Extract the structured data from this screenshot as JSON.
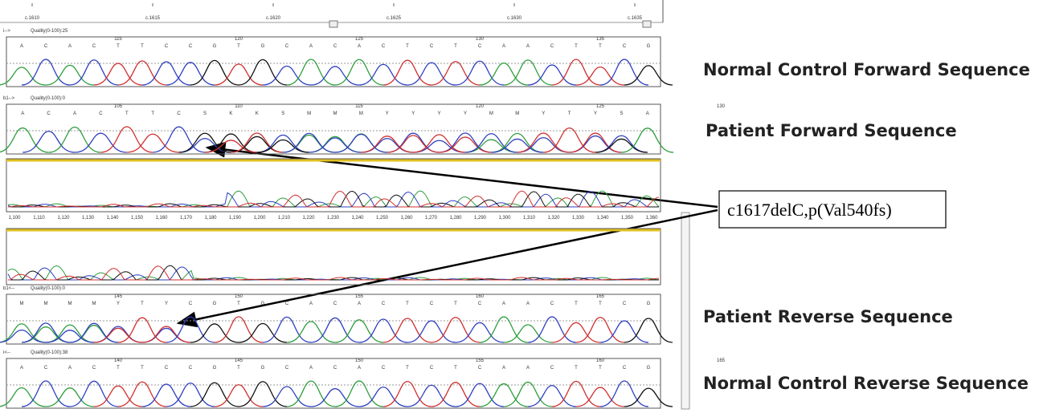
{
  "ruler": {
    "labels": [
      "c.1610",
      "c.1615",
      "c.1620",
      "c.1625",
      "c.1630",
      "c.1635"
    ]
  },
  "tracks": [
    {
      "direction": "i-->",
      "quality": "Quality(0-100):25",
      "positions": [
        "115",
        "120",
        "125",
        "130",
        "135"
      ],
      "bases": [
        "A",
        "C",
        "A",
        "C",
        "T",
        "T",
        "C",
        "C",
        "G",
        "T",
        "G",
        "C",
        "A",
        "C",
        "A",
        "C",
        "T",
        "C",
        "T",
        "C",
        "A",
        "A",
        "C",
        "T",
        "T",
        "C",
        "G"
      ],
      "label": "Normal Control Forward Sequence"
    },
    {
      "direction": "b1-->",
      "quality": "Quality(0-100):0",
      "positions": [
        "105",
        "110",
        "115",
        "120",
        "125",
        "130"
      ],
      "bases": [
        "A",
        "C",
        "A",
        "C",
        "T",
        "T",
        "C",
        "S",
        "K",
        "K",
        "S",
        "M",
        "M",
        "M",
        "Y",
        "Y",
        "Y",
        "Y",
        "M",
        "M",
        "Y",
        "T",
        "Y",
        "S",
        "A"
      ],
      "label": "Patient Forward Sequence"
    },
    {
      "direction": "b1<--",
      "quality": "Quality(0-100):0",
      "positions": [
        "145",
        "150",
        "155",
        "160",
        "165"
      ],
      "bases": [
        "M",
        "M",
        "M",
        "M",
        "Y",
        "T",
        "Y",
        "C",
        "G",
        "T",
        "G",
        "C",
        "A",
        "C",
        "A",
        "C",
        "T",
        "C",
        "T",
        "C",
        "A",
        "A",
        "C",
        "T",
        "T",
        "C",
        "G"
      ],
      "label": "Patient Reverse Sequence"
    },
    {
      "direction": "i<--",
      "quality": "Quality(0-100):38",
      "positions": [
        "140",
        "145",
        "150",
        "155",
        "160",
        "165"
      ],
      "bases": [
        "A",
        "C",
        "A",
        "C",
        "T",
        "T",
        "C",
        "C",
        "G",
        "T",
        "G",
        "C",
        "A",
        "C",
        "A",
        "C",
        "T",
        "C",
        "T",
        "C",
        "A",
        "A",
        "C",
        "T",
        "T",
        "C",
        "G"
      ],
      "label": "Normal Control Reverse Sequence"
    }
  ],
  "trace_axis": [
    "1,100",
    "1,110",
    "1,120",
    "1,130",
    "1,140",
    "1,150",
    "1,160",
    "1,170",
    "1,180",
    "1,190",
    "1,200",
    "1,210",
    "1,220",
    "1,230",
    "1,240",
    "1,250",
    "1,260",
    "1,270",
    "1,280",
    "1,290",
    "1,300",
    "1,310",
    "1,320",
    "1,330",
    "1,340",
    "1,350",
    "1,360"
  ],
  "annotation": "c1617delC,p(Val540fs)"
}
